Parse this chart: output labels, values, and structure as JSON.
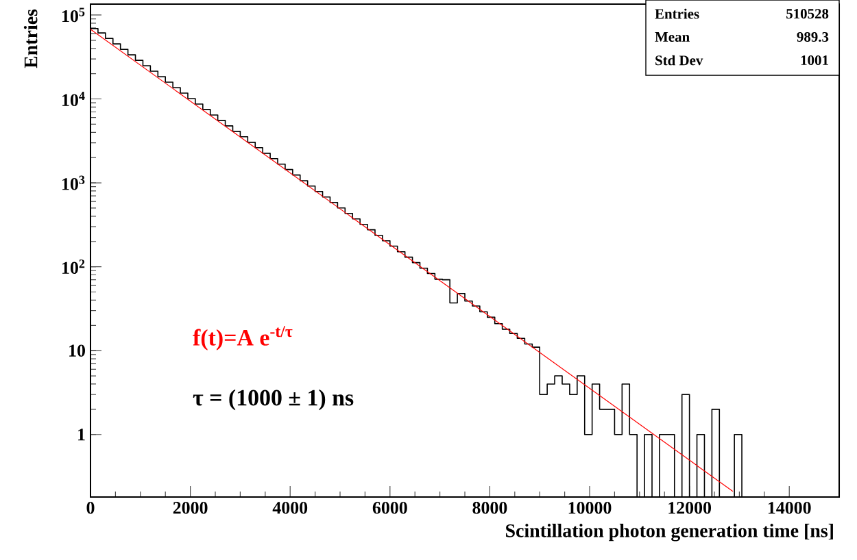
{
  "chart_data": {
    "type": "histogram",
    "xlabel": "Scintillation photon generation time [ns]",
    "ylabel": "Entries",
    "bins": [
      0,
      150,
      300,
      450,
      600,
      750,
      900,
      1050,
      1200,
      1350,
      1500,
      1650,
      1800,
      1950,
      2100,
      2250,
      2400,
      2550,
      2700,
      2850,
      3000,
      3150,
      3300,
      3450,
      3600,
      3750,
      3900,
      4050,
      4200,
      4350,
      4500,
      4650,
      4800,
      4950,
      5100,
      5250,
      5400,
      5550,
      5700,
      5850,
      6000,
      6150,
      6300,
      6450,
      6600,
      6750,
      6900,
      7050,
      7200,
      7350,
      7500,
      7650,
      7800,
      7950,
      8100,
      8250,
      8400,
      8550,
      8700,
      8850,
      9000,
      9150,
      9300,
      9450,
      9600,
      9750,
      9900,
      10050,
      10200,
      10350,
      10500,
      10650,
      10800,
      10950,
      11100,
      11250,
      11400,
      11550,
      11700,
      11850,
      12000,
      12150,
      12300,
      12450,
      12600,
      12750,
      12900,
      13050,
      13200,
      13350,
      13500,
      13650,
      13800,
      13950,
      14100,
      14250,
      14400,
      14550,
      14700,
      14850,
      15000
    ],
    "series": [
      {
        "color": "#000000",
        "values": [
          69000,
          61150,
          52630,
          45300,
          38990,
          33560,
          28880,
          24860,
          21400,
          18420,
          15850,
          13640,
          11740,
          10110,
          8700,
          7490,
          6440,
          5550,
          4770,
          4110,
          3540,
          3040,
          2620,
          2250,
          1940,
          1670,
          1440,
          1240,
          1060,
          916,
          788,
          678,
          584,
          502,
          432,
          372,
          320,
          276,
          237,
          204,
          176,
          151,
          130,
          112,
          96,
          83,
          71,
          70,
          37,
          48,
          39,
          34,
          29,
          25,
          21,
          18,
          16,
          14,
          12,
          11,
          3,
          4,
          5,
          4,
          3,
          5,
          1,
          4,
          2,
          2,
          1,
          4,
          1,
          null,
          1,
          null,
          1,
          1,
          null,
          3,
          null,
          1,
          null,
          2,
          null,
          null,
          1,
          null,
          null,
          null,
          null,
          null,
          null,
          null,
          null,
          null,
          null,
          null,
          null,
          null
        ]
      },
      {
        "type": "line",
        "color": "#ff0000",
        "x": [
          0,
          12870
        ],
        "values": [
          67600,
          0.21
        ]
      }
    ],
    "xlim": [
      0,
      15000
    ],
    "ylim": [
      0.18,
      135000
    ],
    "xticks": [
      0,
      2000,
      4000,
      6000,
      8000,
      10000,
      12000,
      14000
    ],
    "yticks": [
      1,
      10,
      {
        "value": 100,
        "label": "10$^{2}$"
      },
      {
        "value": 1000,
        "label": "10$^{3}$"
      },
      {
        "value": 10000,
        "label": "10$^{4}$"
      },
      {
        "value": 100000,
        "label": "10$^{5}$"
      }
    ],
    "log": true,
    "grid": false,
    "annotations": [
      "Entries",
      "510528",
      "Mean",
      "989.3",
      "Std Dev",
      "1001",
      "f(t)=A e$^{-t/τ}$",
      "τ = (1000 ± 1) ns"
    ]
  }
}
